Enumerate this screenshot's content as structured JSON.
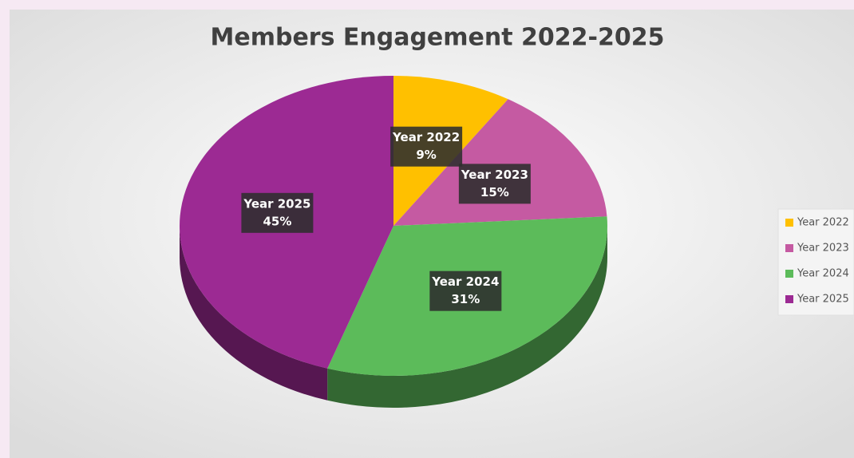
{
  "chart_data": {
    "type": "pie3d",
    "title": "Members Engagement 2022-2025",
    "categories": [
      "Year 2022",
      "Year 2023",
      "Year 2024",
      "Year 2025"
    ],
    "values": [
      9,
      15,
      31,
      45
    ],
    "value_labels": [
      "9%",
      "15%",
      "31%",
      "45%"
    ],
    "colors": [
      "#ffc000",
      "#c55aa2",
      "#5cbb5a",
      "#9c2a93"
    ],
    "legend": "right"
  }
}
